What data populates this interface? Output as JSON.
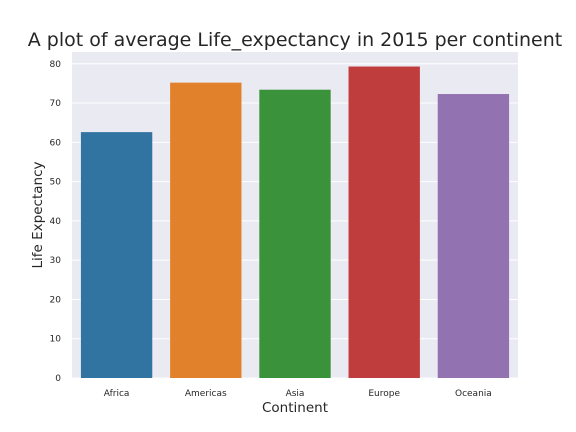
{
  "chart_data": {
    "type": "bar",
    "title": "A plot of average Life_expectancy in 2015 per continent",
    "xlabel": "Continent",
    "ylabel": "Life Expectancy",
    "categories": [
      "Africa",
      "Americas",
      "Asia",
      "Europe",
      "Oceania"
    ],
    "values": [
      62.6,
      75.2,
      73.4,
      79.3,
      72.3
    ],
    "colors": [
      "#3274a1",
      "#e1812c",
      "#3a923a",
      "#c03d3e",
      "#9372b2"
    ],
    "ylim": [
      0,
      83
    ],
    "yticks": [
      0,
      10,
      20,
      30,
      40,
      50,
      60,
      70,
      80
    ],
    "grid": true,
    "background": "#eaeaf2"
  }
}
